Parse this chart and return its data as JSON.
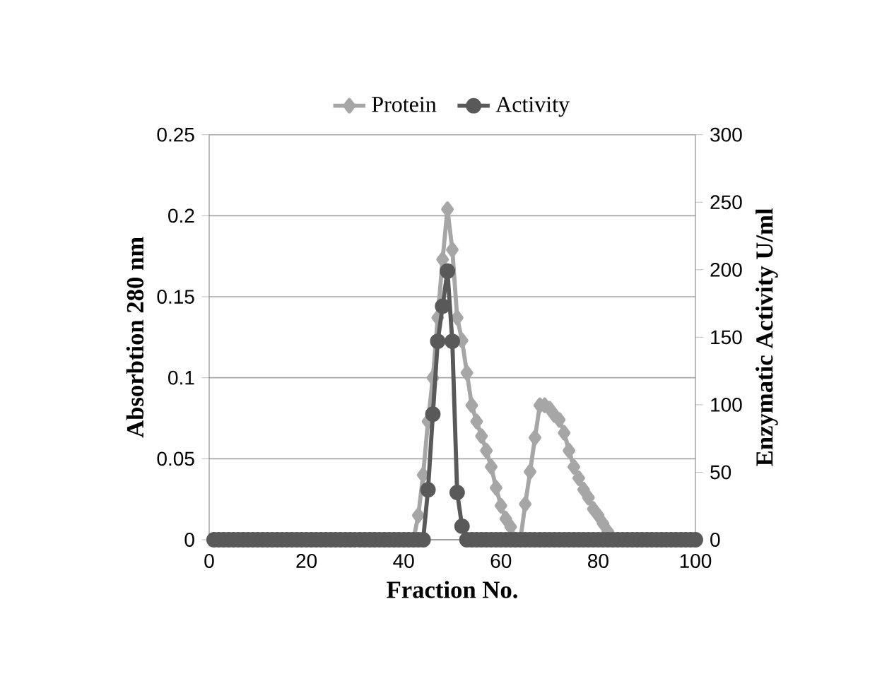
{
  "chart_data": {
    "type": "line",
    "xlabel": "Fraction No.",
    "ylabel": "Absorbtion 280 nm",
    "y2label": "Enzymatic Activity U/ml",
    "x": [
      1,
      2,
      3,
      4,
      5,
      6,
      7,
      8,
      9,
      10,
      11,
      12,
      13,
      14,
      15,
      16,
      17,
      18,
      19,
      20,
      21,
      22,
      23,
      24,
      25,
      26,
      27,
      28,
      29,
      30,
      31,
      32,
      33,
      34,
      35,
      36,
      37,
      38,
      39,
      40,
      41,
      42,
      43,
      44,
      45,
      46,
      47,
      48,
      49,
      50,
      51,
      52,
      53,
      54,
      55,
      56,
      57,
      58,
      59,
      60,
      61,
      62,
      63,
      64,
      65,
      66,
      67,
      68,
      69,
      70,
      71,
      72,
      73,
      74,
      75,
      76,
      77,
      78,
      79,
      80,
      81,
      82,
      83,
      84,
      85,
      86,
      87,
      88,
      89,
      90,
      91,
      92,
      93,
      94,
      95,
      96,
      97,
      98,
      99,
      100
    ],
    "series": [
      {
        "name": "Protein",
        "color": "#a6a6a6",
        "marker": "diamond",
        "values": [
          0,
          0,
          0,
          0,
          0,
          0,
          0,
          0,
          0,
          0,
          0,
          0,
          0,
          0,
          0,
          0,
          0,
          0,
          0,
          0,
          0,
          0,
          0,
          0,
          0,
          0,
          0,
          0,
          0,
          0,
          0,
          0,
          0,
          0,
          0,
          0,
          0,
          0,
          0,
          0,
          0,
          0,
          0.015,
          0.04,
          0.073,
          0.1,
          0.137,
          0.173,
          0.204,
          0.179,
          0.137,
          0.123,
          0.103,
          0.083,
          0.073,
          0.064,
          0.055,
          0.045,
          0.032,
          0.021,
          0.013,
          0.008,
          0,
          0,
          0.022,
          0.042,
          0.063,
          0.083,
          0.083,
          0.081,
          0.077,
          0.074,
          0.066,
          0.055,
          0.045,
          0.038,
          0.031,
          0.026,
          0.019,
          0.015,
          0.01,
          0.005,
          0,
          0,
          0,
          0,
          0,
          0,
          0,
          0,
          0,
          0,
          0,
          0,
          0,
          0,
          0,
          0,
          0,
          0
        ]
      },
      {
        "name": "Activity",
        "color": "#595959",
        "marker": "circle",
        "axis": "y2",
        "values": [
          0,
          0,
          0,
          0,
          0,
          0,
          0,
          0,
          0,
          0,
          0,
          0,
          0,
          0,
          0,
          0,
          0,
          0,
          0,
          0,
          0,
          0,
          0,
          0,
          0,
          0,
          0,
          0,
          0,
          0,
          0,
          0,
          0,
          0,
          0,
          0,
          0,
          0,
          0,
          0,
          0,
          0,
          0,
          0,
          37,
          93,
          147,
          173,
          199,
          147,
          35,
          10,
          0,
          0,
          0,
          0,
          0,
          0,
          0,
          0,
          0,
          0,
          0,
          0,
          0,
          0,
          0,
          0,
          0,
          0,
          0,
          0,
          0,
          0,
          0,
          0,
          0,
          0,
          0,
          0,
          0,
          0,
          0,
          0,
          0,
          0,
          0,
          0,
          0,
          0,
          0,
          0,
          0,
          0,
          0,
          0,
          0,
          0,
          0,
          0
        ]
      }
    ],
    "xlim": [
      0,
      100
    ],
    "xticks": [
      0,
      20,
      40,
      60,
      80,
      100
    ],
    "ylim": [
      0,
      0.25
    ],
    "yticks": [
      0,
      0.05,
      0.1,
      0.15,
      0.2,
      0.25
    ],
    "y2lim": [
      0,
      300
    ],
    "y2ticks": [
      0,
      50,
      100,
      150,
      200,
      250,
      300
    ],
    "grid": "y",
    "legend": "top",
    "line_style": "solid"
  }
}
